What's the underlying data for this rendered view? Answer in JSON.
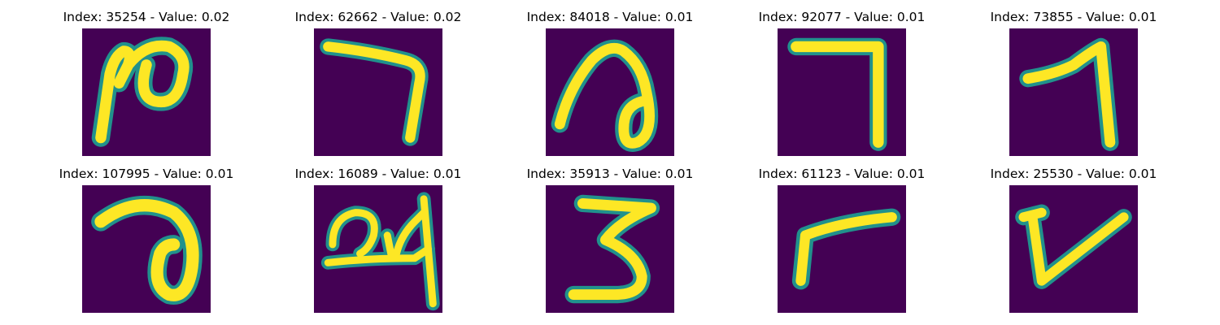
{
  "palette": {
    "background": "#440154",
    "low": "#31688e",
    "mid": "#21918c",
    "high": "#fde725"
  },
  "panels": [
    {
      "title": "Index: 35254 - Value: 0.02",
      "glyph": "handwritten-digit-2-icon"
    },
    {
      "title": "Index: 62662 - Value: 0.02",
      "glyph": "handwritten-digit-7-icon"
    },
    {
      "title": "Index: 84018 - Value: 0.01",
      "glyph": "handwritten-digit-0-icon"
    },
    {
      "title": "Index: 92077 - Value: 0.01",
      "glyph": "handwritten-digit-7-icon"
    },
    {
      "title": "Index: 73855 - Value: 0.01",
      "glyph": "handwritten-digit-7-icon"
    },
    {
      "title": "Index: 107995 - Value: 0.01",
      "glyph": "handwritten-digit-0-icon"
    },
    {
      "title": "Index: 16089 - Value: 0.01",
      "glyph": "handwritten-digits-24-icon"
    },
    {
      "title": "Index: 35913 - Value: 0.01",
      "glyph": "handwritten-digit-3-icon"
    },
    {
      "title": "Index: 61123 - Value: 0.01",
      "glyph": "handwritten-digit-7-icon"
    },
    {
      "title": "Index: 25530 - Value: 0.01",
      "glyph": "handwritten-digit-v-icon"
    }
  ]
}
